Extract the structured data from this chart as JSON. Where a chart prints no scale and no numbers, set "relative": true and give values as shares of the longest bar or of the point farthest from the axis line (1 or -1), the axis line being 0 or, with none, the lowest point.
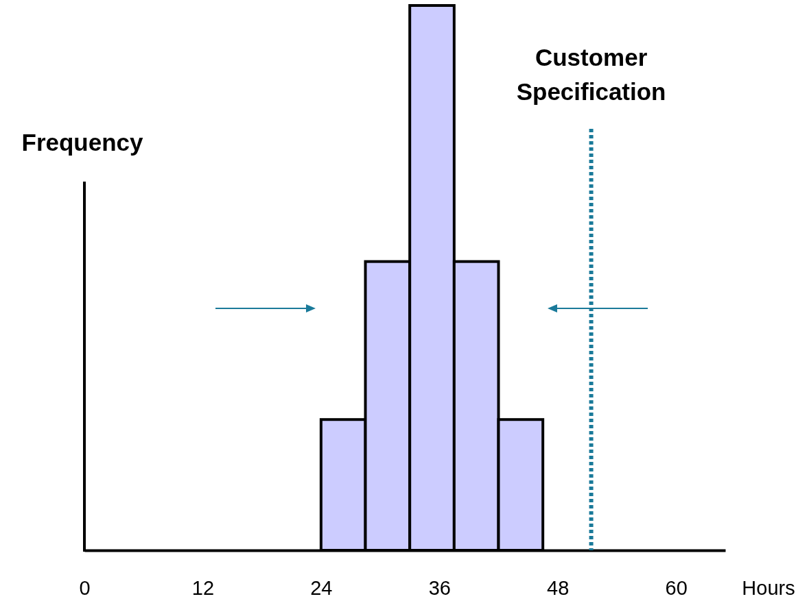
{
  "chart_data": {
    "type": "bar",
    "xlabel": "Hours",
    "ylabel": "Frequency",
    "relative": true,
    "x": [
      26.25,
      30.75,
      35.25,
      39.75,
      44.25
    ],
    "values": [
      0.24,
      0.53,
      1,
      0.53,
      0.24
    ],
    "color": "#ccccff",
    "xlim": [
      0,
      65
    ],
    "xticks": [
      0,
      12,
      24,
      36,
      48,
      60
    ],
    "ref_lines": [
      {
        "axis": "x",
        "value": 51.4,
        "label": "Customer Specification",
        "color": "#1a7a9a",
        "line_style": "dotted"
      }
    ]
  }
}
